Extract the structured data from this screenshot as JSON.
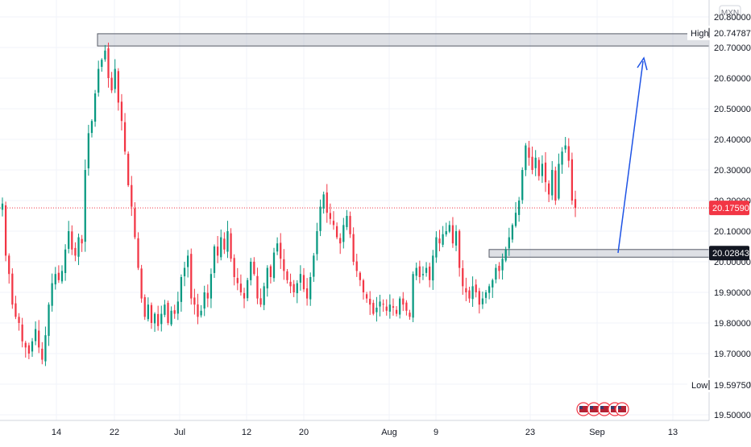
{
  "currency_badge": "MXN",
  "chart_data": {
    "type": "candlestick",
    "title": "",
    "xlabel": "",
    "ylabel": "",
    "ylim": [
      19.46,
      20.83
    ],
    "grid": true,
    "x_tick_labels": [
      "14",
      "22",
      "Jul",
      "12",
      "20",
      "Aug",
      "9",
      "23",
      "Sep",
      "13"
    ],
    "y_tick_labels": [
      "20.80000",
      "20.70000",
      "20.60000",
      "20.50000",
      "20.40000",
      "20.30000",
      "20.20000",
      "20.10000",
      "20.00000",
      "19.90000",
      "19.80000",
      "19.70000",
      "19.60000",
      "19.50000"
    ],
    "high": {
      "label": "High",
      "value": "20.74787"
    },
    "low": {
      "label": "Low",
      "value": "19.59750"
    },
    "last_price": "20.17590",
    "support_level": "20.02843",
    "resistance_zone": [
      20.705,
      20.745
    ],
    "support_zone": [
      20.015,
      20.04
    ],
    "close_series": [
      20.19,
      20.02,
      19.96,
      19.86,
      19.82,
      19.8,
      19.74,
      19.72,
      19.7,
      19.74,
      19.78,
      19.72,
      19.68,
      19.76,
      19.86,
      19.93,
      19.96,
      19.94,
      19.97,
      20.04,
      20.1,
      20.04,
      20.02,
      20.08,
      20.06,
      20.3,
      20.42,
      20.46,
      20.55,
      20.63,
      20.66,
      20.69,
      20.6,
      20.56,
      20.63,
      20.52,
      20.46,
      20.36,
      20.25,
      20.18,
      20.08,
      19.98,
      19.88,
      19.82,
      19.86,
      19.8,
      19.83,
      19.79,
      19.83,
      19.86,
      19.8,
      19.84,
      19.83,
      19.87,
      19.95,
      19.98,
      20.02,
      19.88,
      19.86,
      19.82,
      19.84,
      19.9,
      19.88,
      19.96,
      20.05,
      20.02,
      20.08,
      20.04,
      20.1,
      20.01,
      19.95,
      19.93,
      19.9,
      19.88,
      19.94,
      20.0,
      19.96,
      19.88,
      19.86,
      19.92,
      19.98,
      19.95,
      20.03,
      20.06,
      20.01,
      19.97,
      19.94,
      19.92,
      19.9,
      19.93,
      19.96,
      19.91,
      19.88,
      19.95,
      20.02,
      20.1,
      20.18,
      20.22,
      20.16,
      20.14,
      20.12,
      20.08,
      20.06,
      20.12,
      20.15,
      20.09,
      20.0,
      19.97,
      19.94,
      19.9,
      19.88,
      19.86,
      19.83,
      19.85,
      19.87,
      19.86,
      19.84,
      19.86,
      19.85,
      19.83,
      19.88,
      19.86,
      19.84,
      19.82,
      19.96,
      19.98,
      19.95,
      19.96,
      19.98,
      19.94,
      20.02,
      20.08,
      20.06,
      20.09,
      20.1,
      20.12,
      20.06,
      20.1,
      19.98,
      19.92,
      19.9,
      19.88,
      19.92,
      19.9,
      19.86,
      19.88,
      19.9,
      19.92,
      19.94,
      19.98,
      19.97,
      20.01,
      20.04,
      20.08,
      20.12,
      20.16,
      20.2,
      20.3,
      20.38,
      20.34,
      20.3,
      20.34,
      20.28,
      20.32,
      20.26,
      20.22,
      20.3,
      20.2,
      20.32,
      20.36,
      20.38,
      20.33,
      20.2,
      20.176
    ]
  }
}
